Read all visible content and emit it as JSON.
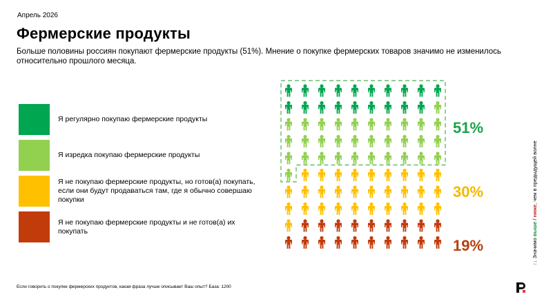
{
  "header": {
    "date": "Апрель 2026",
    "title": "Фермерские продукты",
    "subtitle": "Больше половины россиян покупают фермерские продукты (51%). Мнение о покупке фермерских товаров значимо не изменилось относительно прошлого месяца."
  },
  "legend": [
    {
      "label": "Я регулярно покупаю фермерские продукты",
      "color": "#00a650"
    },
    {
      "label": "Я изредка покупаю фермерские продукты",
      "color": "#92d050"
    },
    {
      "label": "Я не покупаю фермерские продукты, но готов(а) покупать, если они будут продаваться там, где я обычно совершаю покупки",
      "color": "#ffc000"
    },
    {
      "label": "Я не покупаю фермерские продукты и не готов(а) их покупать",
      "color": "#c23b0b"
    }
  ],
  "chart_data": {
    "type": "pictogram",
    "total_icons": 100,
    "grid": {
      "rows": 10,
      "cols": 10
    },
    "categories": [
      "Я регулярно покупаю фермерские продукты",
      "Я изредка покупаю фермерские продукты",
      "Я не покупаю фермерские продукты, но готов(а) покупать, если они будут продаваться там, где я обычно совершаю покупки",
      "Я не покупаю фермерские продукты и не готов(а) их покупать"
    ],
    "icon_counts": [
      19,
      32,
      30,
      19
    ],
    "colors": [
      "#00a650",
      "#92d050",
      "#ffc000",
      "#c23b0b"
    ],
    "labels": [
      {
        "text": "51%",
        "color": "#1aa24a"
      },
      {
        "text": "30%",
        "color": "#f5b800"
      },
      {
        "text": "19%",
        "color": "#b5400f"
      }
    ]
  },
  "footnote": "Если говорить о покупке фермерских продуктов, какая фраза лучше описывает Ваш опыт? База: 1200",
  "side_note": {
    "prefix": "Значимо ",
    "up": "выше",
    "sep": " / ",
    "down": "ниже",
    "suffix": ", чем в предыдущей волне",
    "arrow_up": "↑",
    "arrow_down": "↓"
  }
}
